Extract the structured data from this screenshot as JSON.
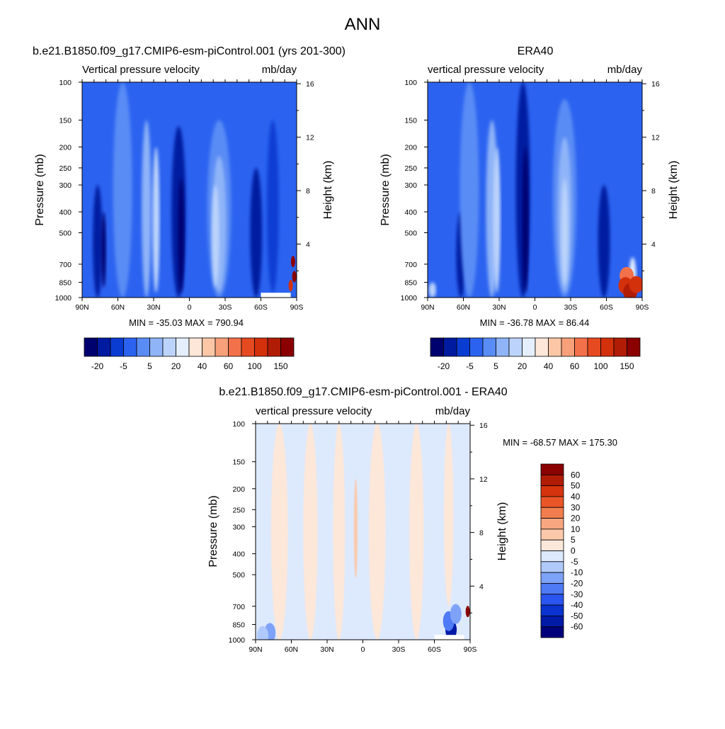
{
  "figure": {
    "title": "ANN"
  },
  "colorbar": {
    "colors": [
      "#00006e",
      "#001aa0",
      "#0a3cd2",
      "#2b63f0",
      "#5a8cf5",
      "#8fb4f8",
      "#bcd4fb",
      "#e4eefd",
      "#fde7d8",
      "#fbc7a6",
      "#f7a07a",
      "#f2714a",
      "#e64a20",
      "#d3300c",
      "#b01c05",
      "#8b0000"
    ],
    "labels": [
      "-20",
      "-5",
      "5",
      "20",
      "40",
      "60",
      "100",
      "150"
    ]
  },
  "diff_colorbar": {
    "colors": [
      "#00007a",
      "#001aa8",
      "#0a33d0",
      "#2b55f0",
      "#4f7af5",
      "#7ea2f8",
      "#b0c9fb",
      "#dde9fd",
      "#fde7d8",
      "#fbc9aa",
      "#f7a67f",
      "#f27d4e",
      "#ea5527",
      "#d6330f",
      "#b01c05",
      "#8b0000"
    ],
    "labels": [
      "60",
      "50",
      "40",
      "30",
      "20",
      "10",
      "5",
      "0",
      "-5",
      "-10",
      "-20",
      "-30",
      "-40",
      "-50",
      "-60"
    ]
  },
  "chart_data": [
    {
      "type": "heatmap",
      "title": "b.e21.B1850.f09_g17.CMIP6-esm-piControl.001 (yrs 201-300)",
      "header_left": "Vertical pressure velocity",
      "header_right": "mb/day",
      "ylabel": "Pressure (mb)",
      "y2label": "Height (km)",
      "x_ticks": [
        "90N",
        "60N",
        "30N",
        "0",
        "30S",
        "60S",
        "90S"
      ],
      "y_ticks": [
        "100",
        "150",
        "200",
        "250",
        "300",
        "400",
        "500",
        "700",
        "850",
        "1000"
      ],
      "y2_ticks": [
        "16",
        "12",
        "8",
        "4"
      ],
      "stats": "MIN = -35.03  MAX = 790.94",
      "xlim": [
        90,
        -90
      ],
      "ylim": [
        1000,
        100
      ],
      "features": [
        {
          "lat": 77,
          "halfwidth": 4,
          "top": 300,
          "bottom": 1000,
          "level": 1
        },
        {
          "lat": 72,
          "halfwidth": 2,
          "top": 400,
          "bottom": 900,
          "level": 0
        },
        {
          "lat": 56,
          "halfwidth": 8,
          "top": 100,
          "bottom": 1000,
          "level": 4
        },
        {
          "lat": 36,
          "halfwidth": 4,
          "top": 150,
          "bottom": 1000,
          "level": 5
        },
        {
          "lat": 28,
          "halfwidth": 3,
          "top": 200,
          "bottom": 950,
          "level": 6
        },
        {
          "lat": 9,
          "halfwidth": 6,
          "top": 160,
          "bottom": 1000,
          "level": 1
        },
        {
          "lat": 7,
          "halfwidth": 2.5,
          "top": 280,
          "bottom": 950,
          "level": 0
        },
        {
          "lat": -25,
          "halfwidth": 10,
          "top": 150,
          "bottom": 1000,
          "level": 4
        },
        {
          "lat": -25,
          "halfwidth": 6,
          "top": 220,
          "bottom": 950,
          "level": 5
        },
        {
          "lat": -22,
          "halfwidth": 3,
          "top": 300,
          "bottom": 900,
          "level": 6
        },
        {
          "lat": -56,
          "halfwidth": 5,
          "top": 250,
          "bottom": 1000,
          "level": 1
        },
        {
          "lat": -70,
          "halfwidth": 5,
          "top": 150,
          "bottom": 950,
          "level": 2
        }
      ],
      "positive_cells": [
        {
          "lat": -87,
          "pressure": 680,
          "value": 150
        },
        {
          "lat": -88,
          "pressure": 800,
          "value": 100
        },
        {
          "lat": -85,
          "pressure": 880,
          "value": 40
        }
      ],
      "missing": {
        "lat_from": -60,
        "lat_to": -85,
        "p_from": 950,
        "p_to": 1000
      }
    },
    {
      "type": "heatmap",
      "title": "ERA40",
      "header_left": "vertical pressure velocity",
      "header_right": "mb/day",
      "ylabel": "Pressure (mb)",
      "y2label": "Height (km)",
      "x_ticks": [
        "90N",
        "60N",
        "30N",
        "0",
        "30S",
        "60S",
        "90S"
      ],
      "y_ticks": [
        "100",
        "150",
        "200",
        "250",
        "300",
        "400",
        "500",
        "700",
        "850",
        "1000"
      ],
      "y2_ticks": [
        "16",
        "12",
        "8",
        "4"
      ],
      "stats": "MIN = -36.78  MAX =  86.44",
      "xlim": [
        90,
        -90
      ],
      "ylim": [
        1000,
        100
      ],
      "features": [
        {
          "lat": 62,
          "halfwidth": 4,
          "top": 400,
          "bottom": 1000,
          "level": 1
        },
        {
          "lat": 55,
          "halfwidth": 8,
          "top": 100,
          "bottom": 1000,
          "level": 4
        },
        {
          "lat": 36,
          "halfwidth": 5,
          "top": 150,
          "bottom": 1000,
          "level": 5
        },
        {
          "lat": 32,
          "halfwidth": 3,
          "top": 200,
          "bottom": 950,
          "level": 6
        },
        {
          "lat": 10,
          "halfwidth": 6,
          "top": 100,
          "bottom": 1000,
          "level": 1
        },
        {
          "lat": 8,
          "halfwidth": 2.5,
          "top": 200,
          "bottom": 950,
          "level": 0
        },
        {
          "lat": -25,
          "halfwidth": 10,
          "top": 120,
          "bottom": 1000,
          "level": 4
        },
        {
          "lat": -25,
          "halfwidth": 6,
          "top": 180,
          "bottom": 950,
          "level": 5
        },
        {
          "lat": -25,
          "halfwidth": 3,
          "top": 280,
          "bottom": 880,
          "level": 6
        },
        {
          "lat": -58,
          "halfwidth": 5,
          "top": 300,
          "bottom": 1000,
          "level": 1
        },
        {
          "lat": -82,
          "halfwidth": 3,
          "top": 650,
          "bottom": 1000,
          "level": 7
        },
        {
          "lat": 86,
          "halfwidth": 3,
          "top": 850,
          "bottom": 1000,
          "level": 6
        }
      ],
      "positive_cells": [
        {
          "lat": -77,
          "pressure": 790,
          "value": 20
        },
        {
          "lat": -76,
          "pressure": 880,
          "value": 40
        },
        {
          "lat": -80,
          "pressure": 940,
          "value": 60
        },
        {
          "lat": -85,
          "pressure": 870,
          "value": 40
        }
      ]
    },
    {
      "type": "heatmap",
      "title": "b.e21.B1850.f09_g17.CMIP6-esm-piControl.001 - ERA40",
      "header_left": "vertical pressure velocity",
      "header_right": "mb/day",
      "ylabel": "Pressure (mb)",
      "y2label": "Height (km)",
      "x_ticks": [
        "90N",
        "60N",
        "30N",
        "0",
        "30S",
        "60S",
        "90S"
      ],
      "y_ticks": [
        "100",
        "150",
        "200",
        "250",
        "300",
        "400",
        "500",
        "700",
        "850",
        "1000"
      ],
      "y2_ticks": [
        "16",
        "12",
        "8",
        "4"
      ],
      "stats": "MIN = -68.57  MAX = 175.30",
      "xlim": [
        90,
        -90
      ],
      "ylim": [
        1000,
        100
      ],
      "base_value": -2,
      "features": [
        {
          "lat": 70,
          "halfwidth": 7,
          "top": 100,
          "bottom": 1000,
          "value": 2
        },
        {
          "lat": 44,
          "halfwidth": 6,
          "top": 100,
          "bottom": 1000,
          "value": 2
        },
        {
          "lat": 20,
          "halfwidth": 5,
          "top": 100,
          "bottom": 1000,
          "value": 2
        },
        {
          "lat": 6,
          "halfwidth": 1.5,
          "top": 180,
          "bottom": 520,
          "value": 7
        },
        {
          "lat": -12,
          "halfwidth": 7,
          "top": 100,
          "bottom": 1000,
          "value": 2
        },
        {
          "lat": -45,
          "halfwidth": 6,
          "top": 100,
          "bottom": 1000,
          "value": 2
        },
        {
          "lat": -72,
          "halfwidth": 4,
          "top": 100,
          "bottom": 700,
          "value": 2
        }
      ],
      "negative_cells": [
        {
          "lat": -74,
          "pressure": 900,
          "value": -55
        },
        {
          "lat": -72,
          "pressure": 820,
          "value": -30
        },
        {
          "lat": -78,
          "pressure": 760,
          "value": -15
        },
        {
          "lat": 78,
          "pressure": 930,
          "value": -15
        },
        {
          "lat": 84,
          "pressure": 960,
          "value": -8
        }
      ],
      "positive_cells": [
        {
          "lat": -88,
          "pressure": 740,
          "value": 60
        }
      ],
      "missing": {
        "lat_from": -60,
        "lat_to": -85,
        "p_from": 950,
        "p_to": 1000
      }
    }
  ]
}
